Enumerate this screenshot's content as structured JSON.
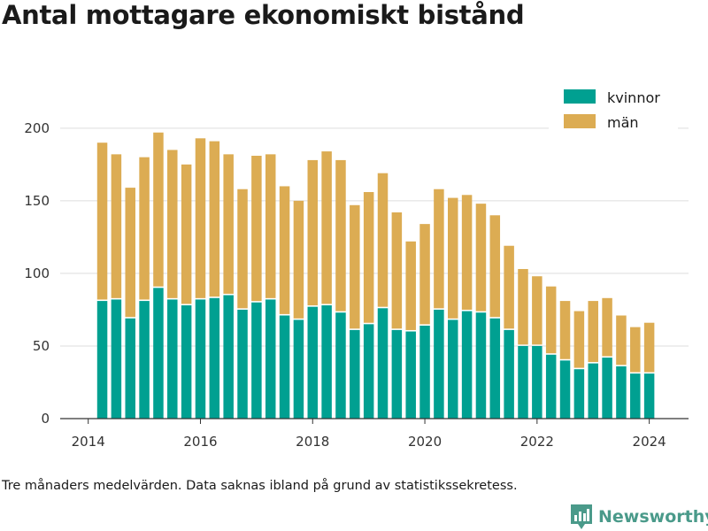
{
  "title": "Antal mottagare ekonomiskt bistånd",
  "footnote": "Tre månaders medelvärden. Data saknas ibland på grund av statistikssekretess.",
  "brand": {
    "name": "Newsworthy",
    "icon": "bar-chart-logo-icon",
    "color": "#4a9a8a"
  },
  "colors": {
    "kvinnor": "#00a091",
    "man": "#dcac53",
    "grid": "#dddddd",
    "axis": "#333333"
  },
  "chart_data": {
    "type": "bar",
    "stacked": true,
    "title": "Antal mottagare ekonomiskt bistånd",
    "xlabel": "",
    "ylabel": "",
    "xlim": [
      2013.5,
      2024.7
    ],
    "ylim": [
      0,
      220
    ],
    "xticks": [
      2014,
      2016,
      2018,
      2020,
      2022,
      2024
    ],
    "yticks": [
      0,
      50,
      100,
      150,
      200
    ],
    "grid": true,
    "legend_position": "top-right",
    "x": [
      2014.25,
      2014.5,
      2014.75,
      2015.0,
      2015.25,
      2015.5,
      2015.75,
      2016.0,
      2016.25,
      2016.5,
      2016.75,
      2017.0,
      2017.25,
      2017.5,
      2017.75,
      2018.0,
      2018.25,
      2018.5,
      2018.75,
      2019.0,
      2019.25,
      2019.5,
      2019.75,
      2020.0,
      2020.25,
      2020.5,
      2020.75,
      2021.0,
      2021.25,
      2021.5,
      2021.75,
      2022.0,
      2022.25,
      2022.5,
      2022.75,
      2023.0,
      2023.25,
      2023.5,
      2023.75,
      2024.0
    ],
    "series": [
      {
        "name": "kvinnor",
        "values": [
          81,
          82,
          69,
          81,
          90,
          82,
          78,
          82,
          83,
          85,
          75,
          80,
          82,
          71,
          68,
          77,
          78,
          73,
          61,
          65,
          76,
          61,
          60,
          64,
          75,
          68,
          74,
          73,
          69,
          61,
          50,
          50,
          44,
          40,
          34,
          38,
          42,
          36,
          31,
          31
        ]
      },
      {
        "name": "män",
        "values": [
          109,
          100,
          90,
          99,
          107,
          103,
          97,
          111,
          108,
          97,
          83,
          101,
          100,
          89,
          82,
          101,
          106,
          105,
          86,
          91,
          93,
          81,
          62,
          70,
          83,
          84,
          80,
          75,
          71,
          58,
          53,
          48,
          47,
          41,
          40,
          43,
          41,
          35,
          32,
          35
        ]
      }
    ]
  }
}
